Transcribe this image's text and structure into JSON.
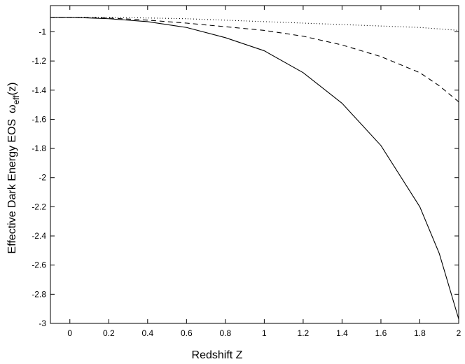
{
  "chart_data": {
    "type": "line",
    "xlabel": "Redshift Z",
    "ylabel": "Effective Dark Energy EOS",
    "ylabel_symbol": "ω",
    "ylabel_subscript": "eff",
    "ylabel_suffix": "(z)",
    "x": [
      -0.1,
      0,
      0.2,
      0.4,
      0.6,
      0.8,
      1,
      1.2,
      1.4,
      1.6,
      1.8,
      1.9,
      2
    ],
    "series": [
      {
        "color": "#000000",
        "dash": "solid",
        "values": [
          -0.9,
          -0.9,
          -0.91,
          -0.93,
          -0.97,
          -1.04,
          -1.13,
          -1.28,
          -1.49,
          -1.78,
          -2.2,
          -2.52,
          -2.97
        ]
      },
      {
        "color": "#000000",
        "dash": "dashed",
        "values": [
          -0.9,
          -0.9,
          -0.905,
          -0.92,
          -0.94,
          -0.965,
          -0.99,
          -1.03,
          -1.09,
          -1.17,
          -1.28,
          -1.37,
          -1.48
        ]
      },
      {
        "color": "#000000",
        "dash": "dotted",
        "values": [
          -0.9,
          -0.9,
          -0.9,
          -0.905,
          -0.91,
          -0.92,
          -0.93,
          -0.94,
          -0.95,
          -0.96,
          -0.97,
          -0.98,
          -0.99
        ]
      }
    ],
    "xlim": [
      -0.1,
      2
    ],
    "ylim": [
      -3,
      -0.82
    ],
    "xticks": [
      0,
      0.2,
      0.4,
      0.6,
      0.8,
      1,
      1.2,
      1.4,
      1.6,
      1.8,
      2
    ],
    "yticks": [
      -1,
      -1.2,
      -1.4,
      -1.6,
      -1.8,
      -2,
      -2.2,
      -2.4,
      -2.6,
      -2.8,
      -3
    ],
    "grid": false
  }
}
